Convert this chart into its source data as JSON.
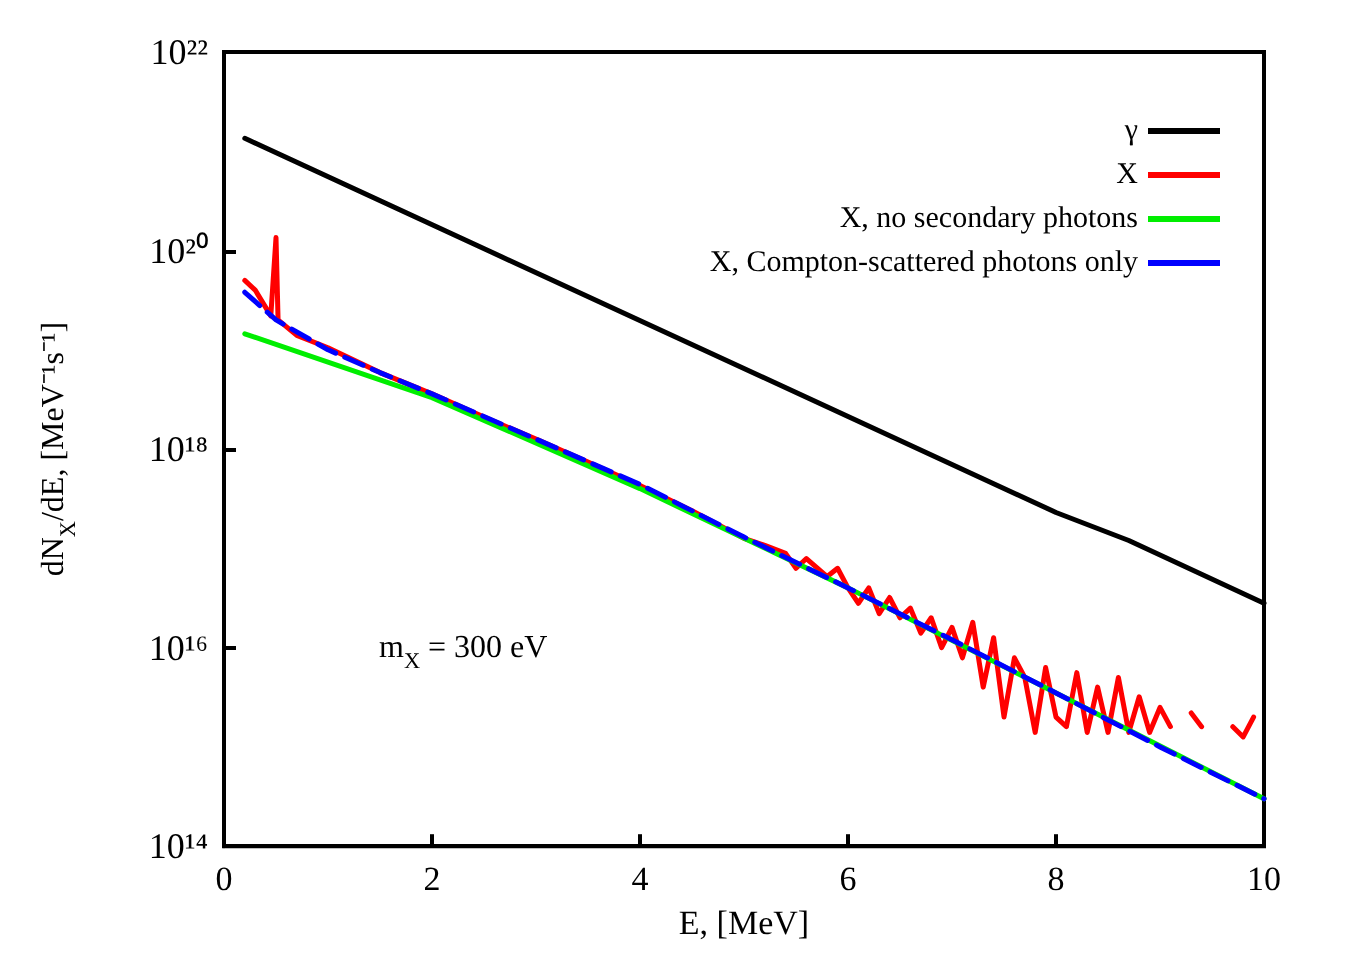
{
  "chart_data": {
    "type": "line",
    "xlabel": "E, [MeV]",
    "ylabel": "dN$_{X}$/dE, [MeV⁻¹s⁻¹]",
    "log": "y",
    "xlim": [
      0,
      10
    ],
    "xticks": [
      0,
      2,
      4,
      6,
      8,
      10
    ],
    "ylim": [
      100000000000000.0,
      1e+22
    ],
    "yticks": [
      {
        "value": 100000000000000.0,
        "label": "10¹⁴"
      },
      {
        "value": 1e+16,
        "label": "10¹⁶"
      },
      {
        "value": 1e+18,
        "label": "10¹⁸"
      },
      {
        "value": 1e+20,
        "label": "10²⁰"
      },
      {
        "value": 1e+22,
        "label": "10²²"
      }
    ],
    "grid": false,
    "legend": "top right",
    "marker": "none",
    "annotations": [
      "m$_{X}$ = 300 eV"
    ],
    "series": [
      {
        "name": "γ",
        "color": "#000000",
        "x": [
          0.2,
          8,
          8.7,
          10
        ],
        "values": [
          1.35e+21,
          2.3e+17,
          1.2e+17,
          2.8e+16
        ]
      },
      {
        "name": "X",
        "color": "#ff0000",
        "x": [
          0.2,
          0.3,
          0.45,
          0.5,
          0.52,
          0.7,
          1,
          1.5,
          2,
          2.5,
          3,
          3.5,
          4,
          4.5,
          5,
          5.2,
          5.4,
          5.5,
          5.6,
          5.8,
          5.9,
          6,
          6.1,
          6.2,
          6.3,
          6.4,
          6.5,
          6.6,
          6.7,
          6.8,
          6.9,
          7,
          7.1,
          7.2,
          7.3,
          7.4,
          7.5,
          7.6,
          7.7,
          7.8,
          7.9,
          8,
          8.1,
          8.2,
          8.3,
          8.4,
          8.5,
          8.6,
          8.7,
          8.8,
          8.9,
          9,
          9.1,
          9.2,
          9.3,
          9.4,
          9.5,
          9.7,
          9.8,
          9.9
        ],
        "values": [
          5e+19,
          4e+19,
          2.2e+19,
          1.35e+20,
          2e+19,
          1.4e+19,
          1.05e+19,
          5.9e+18,
          3.6e+18,
          2.1e+18,
          1.26e+18,
          7.4e+17,
          4.3e+17,
          2.4e+17,
          1.26e+17,
          1.07e+17,
          8.9e+16,
          6.3e+16,
          7.9e+16,
          5.2e+16,
          6.3e+16,
          4e+16,
          2.8e+16,
          4e+16,
          2.2e+16,
          3.2e+16,
          2e+16,
          2.5e+16,
          1.4e+16,
          2e+16,
          1e+16,
          1.6e+16,
          7900000000000000.0,
          1.8e+16,
          4000000000000000.0,
          1.26e+16,
          2000000000000000.0,
          7900000000000000.0,
          5000000000000000.0,
          1400000000000000.0,
          6300000000000000.0,
          2000000000000000.0,
          1600000000000000.0,
          5600000000000000.0,
          1400000000000000.0,
          4000000000000000.0,
          1400000000000000.0,
          5000000000000000.0,
          1400000000000000.0,
          3200000000000000.0,
          1400000000000000.0,
          2500000000000000.0,
          1600000000000000.0,
          null,
          2200000000000000.0,
          1600000000000000.0,
          null,
          1600000000000000.0,
          1260000000000000.0,
          2000000000000000.0
        ]
      },
      {
        "name": "X, no secondary photons",
        "color": "#00ee00",
        "x": [
          0.2,
          2,
          4,
          6,
          8,
          10
        ],
        "values": [
          1.45e+19,
          3.3e+18,
          4e+17,
          4e+16,
          3500000000000000.0,
          300000000000000.0
        ]
      },
      {
        "name": "X, Compton-scattered photons only",
        "color": "#0000ff",
        "line_style": "dashed",
        "x": [
          0.2,
          0.5,
          1,
          1.5,
          2,
          3,
          4,
          5,
          6,
          7,
          8,
          9,
          10
        ],
        "values": [
          3.8e+19,
          2e+19,
          1e+19,
          5.9e+18,
          3.6e+18,
          1.26e+18,
          4.4e+17,
          1.3e+17,
          4e+16,
          1.2e+16,
          3500000000000000.0,
          1000000000000000.0,
          300000000000000.0
        ]
      }
    ]
  }
}
